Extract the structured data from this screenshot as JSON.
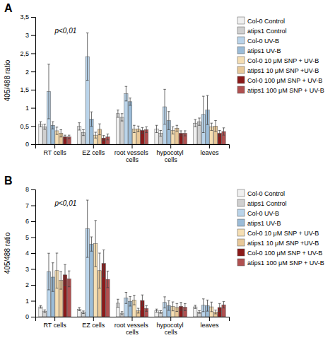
{
  "chart_data": [
    {
      "type": "bar",
      "title": "A",
      "ylabel": "405/488 ratio",
      "annotations": [
        "p<0,01"
      ],
      "legend": "right",
      "categories": [
        "RT cells",
        "EZ cells",
        "root vessels cells",
        "hypocotyl cells",
        "leaves"
      ],
      "ylim": [
        0,
        3.5
      ],
      "yticks": [
        0,
        {
          "value": 0.5,
          "label": "0,5"
        },
        1,
        {
          "value": 1.5,
          "label": "1,5"
        },
        2,
        {
          "value": 2.5,
          "label": "2,5"
        },
        3,
        {
          "value": 3.5,
          "label": "3,5"
        }
      ],
      "series": [
        {
          "name": "Col-0 Control",
          "color": "#f0f0f0",
          "values": [
            0.55,
            0.49,
            0.84,
            0.42,
            0.58
          ],
          "errors": [
            0.07,
            0.1,
            0.1,
            0.1,
            0.1
          ]
        },
        {
          "name": "atips1 Control",
          "color": "#d0d0d0",
          "values": [
            0.48,
            0.32,
            0.74,
            0.3,
            0.62
          ],
          "errors": [
            0.07,
            0.08,
            0.1,
            0.08,
            0.1
          ]
        },
        {
          "name": "Col-0 UV-B",
          "color": "#bad4ea",
          "values": [
            1.45,
            2.41,
            1.39,
            1.03,
            0.82
          ],
          "errors": [
            0.75,
            0.65,
            0.2,
            0.48,
            0.5
          ]
        },
        {
          "name": "atips1 UV-B",
          "color": "#9bbcd8",
          "values": [
            0.52,
            0.69,
            1.17,
            0.65,
            0.94
          ],
          "errors": [
            0.1,
            0.2,
            0.1,
            0.25,
            0.4
          ]
        },
        {
          "name": "Col-0 10 μM SNP + UV-B",
          "color": "#f5deb3",
          "values": [
            0.37,
            0.25,
            0.42,
            0.38,
            0.48
          ],
          "errors": [
            0.1,
            0.08,
            0.1,
            0.1,
            0.1
          ]
        },
        {
          "name": "atips1 10 μM SNP +UV-B",
          "color": "#e8c898",
          "values": [
            0.3,
            0.41,
            0.42,
            0.44,
            0.5
          ],
          "errors": [
            0.1,
            0.15,
            0.08,
            0.08,
            0.15
          ]
        },
        {
          "name": "Col-0 100 μM SNP + UV-B",
          "color": "#8b1a1a",
          "values": [
            0.2,
            0.17,
            0.38,
            0.3,
            0.3
          ],
          "errors": [
            0.05,
            0.07,
            0.08,
            0.07,
            0.08
          ]
        },
        {
          "name": "atips1 100 μM SNP + UV-B",
          "color": "#b05050",
          "values": [
            0.2,
            0.2,
            0.4,
            0.3,
            0.35
          ],
          "errors": [
            0.05,
            0.08,
            0.08,
            0.07,
            0.1
          ]
        }
      ]
    },
    {
      "type": "bar",
      "title": "B",
      "ylabel": "405/488 ratio",
      "annotations": [
        "p<0,01"
      ],
      "legend": "right",
      "categories": [
        "RT cells",
        "EZ cells",
        "root vessels cells",
        "hypocotyl cells",
        "leaves"
      ],
      "ylim": [
        0,
        8
      ],
      "yticks": [
        0,
        1,
        2,
        3,
        4,
        5,
        6,
        7,
        8
      ],
      "series": [
        {
          "name": "Col-0 Control",
          "color": "#f0f0f0",
          "values": [
            0.62,
            0.48,
            0.85,
            0.38,
            0.62
          ],
          "errors": [
            0.08,
            0.1,
            0.25,
            0.1,
            0.1
          ]
        },
        {
          "name": "atips1 Control",
          "color": "#d0d0d0",
          "values": [
            0.35,
            0.28,
            0.22,
            0.3,
            0.3
          ],
          "errors": [
            0.08,
            0.08,
            0.1,
            0.08,
            0.08
          ]
        },
        {
          "name": "Col-0 UV-B",
          "color": "#bad4ea",
          "values": [
            2.84,
            5.53,
            1.18,
            0.9,
            0.72
          ],
          "errors": [
            1.15,
            1.8,
            0.35,
            0.35,
            0.4
          ]
        },
        {
          "name": "atips1 UV-B",
          "color": "#9bbcd8",
          "values": [
            2.49,
            4.57,
            0.97,
            0.7,
            0.7
          ],
          "errors": [
            0.9,
            0.45,
            0.3,
            0.3,
            0.35
          ]
        },
        {
          "name": "Col-0 10 μM SNP + UV-B",
          "color": "#f5deb3",
          "values": [
            2.9,
            4.6,
            1.05,
            0.65,
            0.62
          ],
          "errors": [
            1.1,
            1.45,
            0.3,
            0.28,
            0.3
          ]
        },
        {
          "name": "atips1 10 μM SNP +UV-B",
          "color": "#e8c898",
          "values": [
            2.28,
            2.9,
            0.38,
            0.58,
            0.3
          ],
          "errors": [
            0.55,
            1.1,
            0.15,
            0.25,
            0.12
          ]
        },
        {
          "name": "Col-0 100 μM SNP + UV-B",
          "color": "#8b1a1a",
          "values": [
            2.63,
            3.35,
            1.02,
            0.65,
            0.58
          ],
          "errors": [
            0.65,
            0.85,
            0.35,
            0.25,
            0.25
          ]
        },
        {
          "name": "atips1 100 μM SNP + UV-B",
          "color": "#b05050",
          "values": [
            2.38,
            2.35,
            0.52,
            0.6,
            0.75
          ],
          "errors": [
            0.5,
            0.52,
            0.18,
            0.22,
            0.2
          ]
        }
      ]
    }
  ]
}
